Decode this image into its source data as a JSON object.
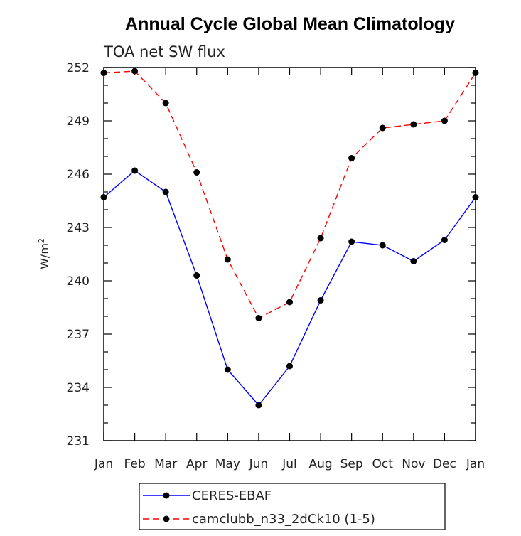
{
  "chart_data": {
    "type": "line",
    "title": "Annual Cycle Global Mean Climatology",
    "subtitle": "TOA net SW flux",
    "ylabel_base": "W/m",
    "ylabel_sup": "2",
    "xlabel": "",
    "categories": [
      "Jan",
      "Feb",
      "Mar",
      "Apr",
      "May",
      "Jun",
      "Jul",
      "Aug",
      "Sep",
      "Oct",
      "Nov",
      "Dec",
      "Jan"
    ],
    "ylim": [
      231,
      252
    ],
    "yticks": [
      231,
      234,
      237,
      240,
      243,
      246,
      249,
      252
    ],
    "grid": false,
    "legend_position": "bottom",
    "series": [
      {
        "name": "CERES-EBAF",
        "color": "#0000ff",
        "dash": "solid",
        "values": [
          244.7,
          246.2,
          245.0,
          240.3,
          235.0,
          233.0,
          235.2,
          238.9,
          242.2,
          242.0,
          241.1,
          242.3,
          244.7
        ]
      },
      {
        "name": "camclubb_n33_2dCk10 (1-5)",
        "color": "#ff0000",
        "dash": "dashed",
        "values": [
          251.7,
          251.8,
          250.0,
          246.1,
          241.2,
          237.9,
          238.8,
          242.4,
          246.9,
          248.6,
          248.8,
          249.0,
          251.7
        ]
      }
    ]
  }
}
